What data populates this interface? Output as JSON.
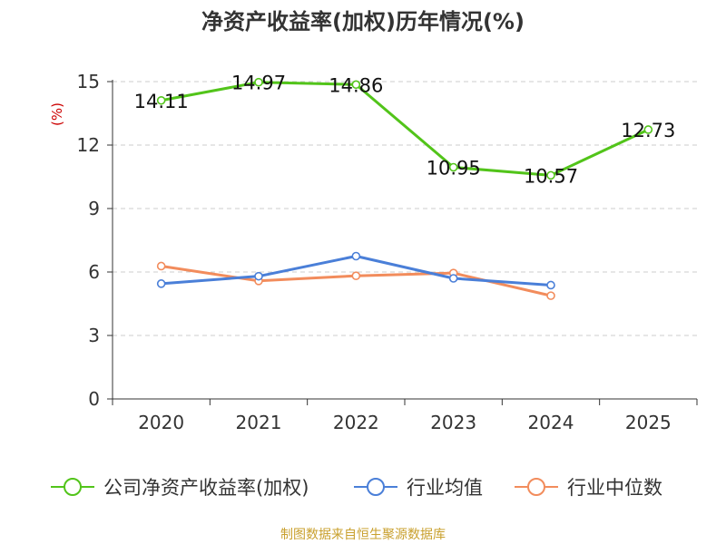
{
  "chart_data": {
    "type": "line",
    "title": "净资产收益率(加权)历年情况(%)",
    "ylabel": "(%)",
    "xlabel": "",
    "categories": [
      "2020",
      "2021",
      "2022",
      "2023",
      "2024",
      "2025"
    ],
    "ylim": [
      0,
      15
    ],
    "yticks": [
      0,
      3,
      6,
      9,
      12,
      15
    ],
    "grid": true,
    "legend_position": "bottom",
    "series": [
      {
        "name": "公司净资产收益率(加权)",
        "color": "#52c41a",
        "values": [
          14.11,
          14.97,
          14.86,
          10.95,
          10.57,
          12.73
        ],
        "show_labels": true
      },
      {
        "name": "行业均值",
        "color": "#4a7fd8",
        "values": [
          5.45,
          5.8,
          6.75,
          5.7,
          5.38,
          null
        ],
        "show_labels": false
      },
      {
        "name": "行业中位数",
        "color": "#f28c5c",
        "values": [
          6.28,
          5.58,
          5.82,
          5.95,
          4.88,
          null
        ],
        "show_labels": false
      }
    ],
    "colors": {
      "axis": "#333333",
      "grid": "#cccccc",
      "ylabel": "#cc0000"
    }
  },
  "source_note": "制图数据来自恒生聚源数据库"
}
